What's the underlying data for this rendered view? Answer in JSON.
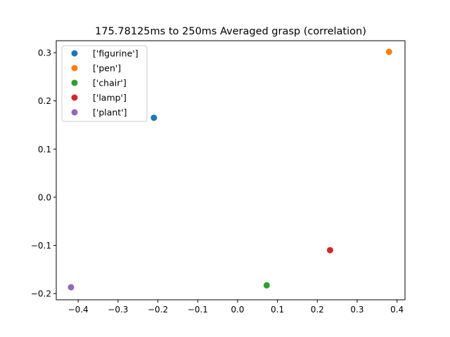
{
  "chart_data": {
    "type": "scatter",
    "title": "175.78125ms to 250ms Averaged grasp (correlation)",
    "xlabel": "",
    "ylabel": "",
    "xlim": [
      -0.455,
      0.42
    ],
    "ylim": [
      -0.213,
      0.325
    ],
    "xticks": [
      -0.4,
      -0.3,
      -0.2,
      -0.1,
      0.0,
      0.1,
      0.2,
      0.3,
      0.4
    ],
    "xtick_labels": [
      "−0.4",
      "−0.3",
      "−0.2",
      "−0.1",
      "0.0",
      "0.1",
      "0.2",
      "0.3",
      "0.4"
    ],
    "yticks": [
      -0.2,
      -0.1,
      0.0,
      0.1,
      0.2,
      0.3
    ],
    "ytick_labels": [
      "−0.2",
      "−0.1",
      "0.0",
      "0.1",
      "0.2",
      "0.3"
    ],
    "grid": false,
    "legend_position": "top-left",
    "series": [
      {
        "name": "['figurine']",
        "color": "#1f77b4",
        "points": [
          {
            "x": -0.21,
            "y": 0.165
          }
        ]
      },
      {
        "name": "['pen']",
        "color": "#ff7f0e",
        "points": [
          {
            "x": 0.38,
            "y": 0.302
          }
        ]
      },
      {
        "name": "['chair']",
        "color": "#2ca02c",
        "points": [
          {
            "x": 0.073,
            "y": -0.183
          }
        ]
      },
      {
        "name": "['lamp']",
        "color": "#d62728",
        "points": [
          {
            "x": 0.232,
            "y": -0.11
          }
        ]
      },
      {
        "name": "['plant']",
        "color": "#9467bd",
        "points": [
          {
            "x": -0.418,
            "y": -0.187
          }
        ]
      }
    ]
  }
}
